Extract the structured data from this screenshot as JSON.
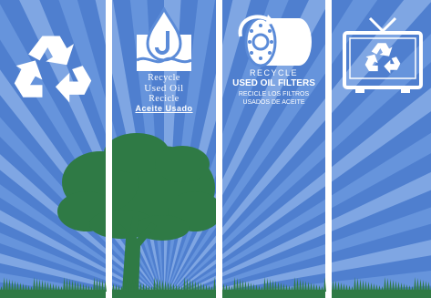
{
  "banners": [
    {
      "icon": "recycle-icon"
    },
    {
      "icon": "oil-drop-icon",
      "text_en_line1": "Recycle",
      "text_en_line2": "Used Oil",
      "text_es_line1": "Recicle",
      "text_es_line2": "Aceite Usado"
    },
    {
      "icon": "oil-filter-icon",
      "text_en_line1": "RECYCLE",
      "text_en_line2": "USED OIL FILTERS",
      "text_es_line1": "RECICLE LOS FILTROS",
      "text_es_line2": "USADOS DE ACEITE"
    },
    {
      "icon": "tv-recycle-icon"
    }
  ],
  "colors": {
    "sky_light": "#6e9be0",
    "sky_dark": "#4f7fcf",
    "ray": "#8fb3ea",
    "tree": "#2f7a45",
    "grass": "#2f7a45",
    "icon": "#ffffff"
  }
}
